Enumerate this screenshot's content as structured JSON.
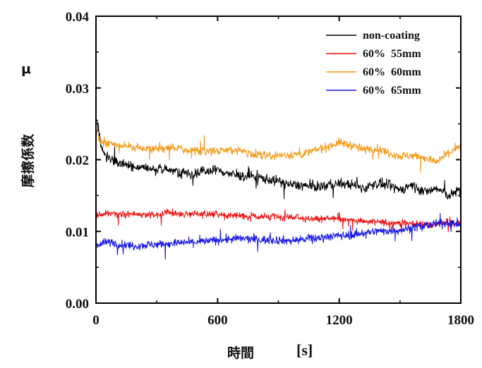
{
  "chart_data": {
    "type": "line",
    "xlabel": "時間",
    "xunit": "[s]",
    "ylabel": "摩擦係数",
    "ysymbol": "μ",
    "xlim": [
      0,
      1800
    ],
    "ylim": [
      0,
      0.04
    ],
    "x_ticks": [
      "0",
      "600",
      "1200",
      "1800"
    ],
    "y_ticks": [
      "0.00",
      "0.01",
      "0.02",
      "0.03",
      "0.04"
    ],
    "grid": false,
    "legend_position": "top-right",
    "series": [
      {
        "name": "non-coating",
        "color": "#000000",
        "noise": 0.0007,
        "x": [
          0,
          10,
          30,
          60,
          120,
          180,
          240,
          300,
          360,
          420,
          480,
          540,
          600,
          660,
          720,
          780,
          840,
          900,
          960,
          1020,
          1080,
          1140,
          1200,
          1260,
          1320,
          1380,
          1440,
          1500,
          1560,
          1620,
          1680,
          1740,
          1780,
          1800
        ],
        "y": [
          0.026,
          0.0245,
          0.0215,
          0.0203,
          0.0195,
          0.019,
          0.0188,
          0.0186,
          0.0186,
          0.0183,
          0.018,
          0.0184,
          0.0186,
          0.018,
          0.0177,
          0.0177,
          0.0173,
          0.017,
          0.0165,
          0.0164,
          0.0162,
          0.0164,
          0.0167,
          0.0165,
          0.016,
          0.0167,
          0.0164,
          0.0158,
          0.0165,
          0.0155,
          0.016,
          0.015,
          0.0155,
          0.016
        ]
      },
      {
        "name": "60%  55mm",
        "color": "#ee1111",
        "noise": 0.0005,
        "x": [
          0,
          10,
          30,
          60,
          120,
          180,
          240,
          300,
          360,
          420,
          480,
          540,
          600,
          660,
          720,
          780,
          840,
          900,
          960,
          1020,
          1080,
          1140,
          1200,
          1260,
          1320,
          1380,
          1440,
          1500,
          1560,
          1620,
          1680,
          1740,
          1800
        ],
        "y": [
          0.0125,
          0.0122,
          0.0124,
          0.0125,
          0.0124,
          0.0124,
          0.0123,
          0.0124,
          0.0126,
          0.0125,
          0.0124,
          0.0124,
          0.0125,
          0.0123,
          0.0122,
          0.0121,
          0.012,
          0.012,
          0.0119,
          0.0119,
          0.0117,
          0.0118,
          0.0117,
          0.0116,
          0.0114,
          0.0113,
          0.0112,
          0.0112,
          0.0111,
          0.011,
          0.011,
          0.0112,
          0.0111
        ]
      },
      {
        "name": "60%  60mm",
        "color": "#f59a1a",
        "noise": 0.0006,
        "x": [
          0,
          10,
          30,
          60,
          120,
          180,
          240,
          300,
          360,
          420,
          480,
          540,
          600,
          660,
          720,
          780,
          840,
          900,
          960,
          1020,
          1080,
          1140,
          1200,
          1260,
          1320,
          1380,
          1440,
          1500,
          1560,
          1620,
          1680,
          1740,
          1780,
          1800
        ],
        "y": [
          0.0245,
          0.023,
          0.0223,
          0.0222,
          0.022,
          0.0218,
          0.0216,
          0.0215,
          0.0217,
          0.0216,
          0.0212,
          0.0213,
          0.0212,
          0.0214,
          0.0212,
          0.0208,
          0.0206,
          0.0206,
          0.0207,
          0.0208,
          0.0213,
          0.0218,
          0.0224,
          0.022,
          0.0214,
          0.0216,
          0.021,
          0.0205,
          0.0206,
          0.0203,
          0.0196,
          0.021,
          0.0215,
          0.0218
        ]
      },
      {
        "name": "60%  65mm",
        "color": "#1515e8",
        "noise": 0.0006,
        "x": [
          0,
          10,
          30,
          60,
          120,
          180,
          240,
          300,
          360,
          420,
          480,
          540,
          600,
          660,
          720,
          780,
          840,
          900,
          960,
          1020,
          1080,
          1140,
          1200,
          1260,
          1320,
          1380,
          1440,
          1500,
          1560,
          1620,
          1680,
          1740,
          1800
        ],
        "y": [
          0.0085,
          0.0082,
          0.0084,
          0.0085,
          0.0082,
          0.008,
          0.0081,
          0.0082,
          0.0083,
          0.0084,
          0.0085,
          0.0086,
          0.0088,
          0.0089,
          0.009,
          0.0089,
          0.0088,
          0.0088,
          0.0087,
          0.0089,
          0.009,
          0.0093,
          0.0094,
          0.0095,
          0.0098,
          0.01,
          0.0101,
          0.0102,
          0.0105,
          0.0108,
          0.011,
          0.0112,
          0.0111
        ]
      }
    ]
  }
}
